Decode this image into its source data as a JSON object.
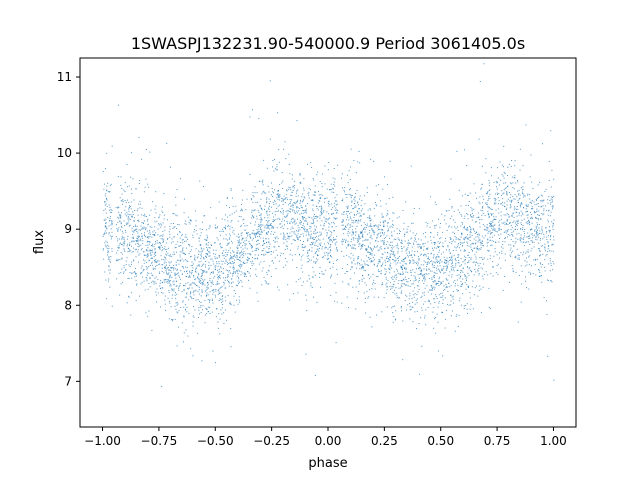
{
  "chart_data": {
    "type": "scatter",
    "title": "1SWASPJ132231.90-540000.9 Period 3061405.0s",
    "xlabel": "phase",
    "ylabel": "flux",
    "xlim": [
      -1.1,
      1.1
    ],
    "ylim": [
      6.4,
      11.25
    ],
    "xticks": [
      -1.0,
      -0.75,
      -0.5,
      -0.25,
      0.0,
      0.25,
      0.5,
      0.75,
      1.0
    ],
    "xtick_labels": [
      "−1.00",
      "−0.75",
      "−0.50",
      "−0.25",
      "0.00",
      "0.25",
      "0.50",
      "0.75",
      "1.00"
    ],
    "yticks": [
      7,
      8,
      9,
      10,
      11
    ],
    "ytick_labels": [
      "7",
      "8",
      "9",
      "10",
      "11"
    ],
    "grid": false,
    "point_color": "#1f77b4",
    "series": [
      {
        "phase_folded_mean_profile": {
          "phase": [
            -1.0,
            -0.95,
            -0.9,
            -0.85,
            -0.8,
            -0.75,
            -0.7,
            -0.65,
            -0.6,
            -0.55,
            -0.5,
            -0.45,
            -0.4,
            -0.35,
            -0.3,
            -0.25,
            -0.2,
            -0.15,
            -0.1,
            -0.05,
            0.0,
            0.05,
            0.1,
            0.15,
            0.2,
            0.25,
            0.3,
            0.35,
            0.4,
            0.45,
            0.5,
            0.55,
            0.6,
            0.65,
            0.7,
            0.75,
            0.8,
            0.85,
            0.9,
            0.95,
            1.0
          ],
          "flux": [
            9.0,
            8.95,
            9.05,
            8.85,
            8.8,
            8.7,
            8.55,
            8.5,
            8.45,
            8.45,
            8.5,
            8.55,
            8.65,
            8.85,
            9.0,
            9.15,
            9.2,
            9.15,
            9.0,
            9.0,
            9.0,
            8.95,
            9.05,
            8.85,
            8.8,
            8.7,
            8.55,
            8.5,
            8.45,
            8.45,
            8.5,
            8.55,
            8.65,
            8.85,
            9.0,
            9.15,
            9.2,
            9.15,
            9.0,
            9.0,
            9.0
          ],
          "scatter_sigma": 0.35
        }
      }
    ]
  }
}
